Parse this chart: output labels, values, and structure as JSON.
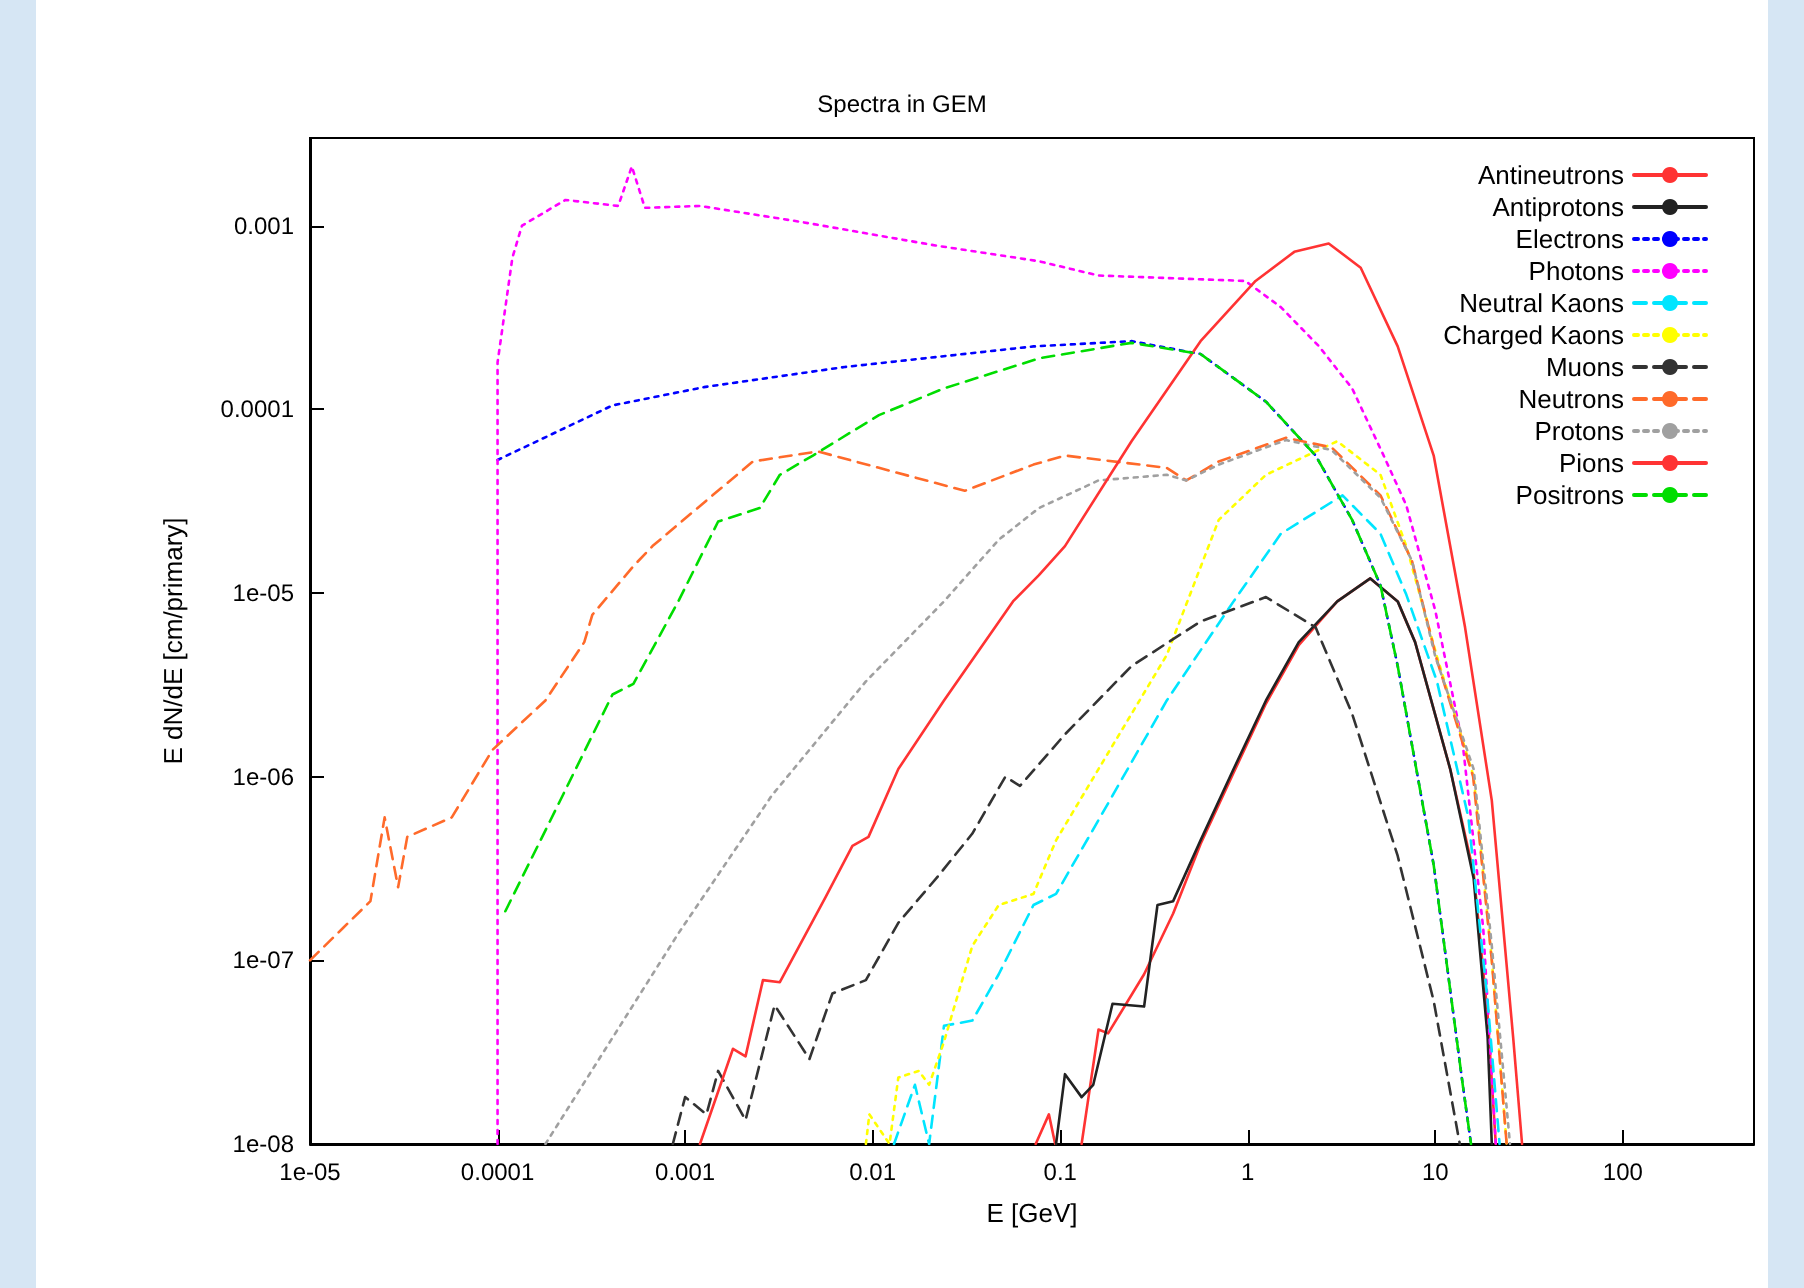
{
  "chart_data": {
    "type": "line",
    "title": "Spectra in GEM",
    "xlabel": "E [GeV]",
    "ylabel": "E dN/dE [cm/primary]",
    "log": "xy",
    "grid": false,
    "legend": "top right",
    "xlim": [
      1e-05,
      500
    ],
    "ylim": [
      1e-08,
      0.003
    ],
    "xticks": [
      {
        "value": 1e-05,
        "label": "1e-05"
      },
      0.0001,
      0.001,
      0.01,
      0.1,
      1,
      10,
      100
    ],
    "yticks": [
      {
        "value": 1e-08,
        "label": "1e-08"
      },
      {
        "value": 1e-07,
        "label": "1e-07"
      },
      {
        "value": 1e-06,
        "label": "1e-06"
      },
      {
        "value": 1e-05,
        "label": "1e-05"
      },
      0.0001,
      0.001
    ],
    "series": [
      {
        "name": "Antineutrons",
        "color": "#ff3333",
        "line_style": "solid",
        "x": [
          0.074,
          0.087,
          0.094,
          0.11,
          0.13,
          0.16,
          0.18,
          0.28,
          0.4,
          0.56,
          0.84,
          1.25,
          1.87,
          3.0,
          4.5,
          6.3,
          7.8,
          12,
          16,
          19,
          21
        ],
        "values": [
          1e-08,
          1.45e-08,
          1e-08,
          null,
          1e-08,
          4.2e-08,
          4e-08,
          8.4e-08,
          1.8e-07,
          4.3e-07,
          1.05e-06,
          2.5e-06,
          5.2e-06,
          9e-06,
          1.2e-05,
          9e-06,
          5.4e-06,
          1.1e-06,
          3e-07,
          5e-08,
          1e-08
        ]
      },
      {
        "name": "Antiprotons",
        "color": "#222222",
        "line_style": "solid",
        "x": [
          0.095,
          0.106,
          0.13,
          0.15,
          0.19,
          0.28,
          0.33,
          0.4,
          0.56,
          0.84,
          1.25,
          1.87,
          3.0,
          4.5,
          6.3,
          7.8,
          12,
          16,
          19,
          20
        ],
        "values": [
          1e-08,
          2.4e-08,
          1.8e-08,
          2.1e-08,
          5.8e-08,
          5.6e-08,
          2e-07,
          2.1e-07,
          4.5e-07,
          1.1e-06,
          2.6e-06,
          5.4e-06,
          9e-06,
          1.2e-05,
          9e-06,
          5.4e-06,
          1.1e-06,
          2.8e-07,
          3.8e-08,
          1e-08
        ]
      },
      {
        "name": "Electrons",
        "color": "#0000ff",
        "line_style": "dotted",
        "x": [
          0.0001,
          0.00041,
          0.00126,
          0.0071,
          0.072,
          0.24,
          0.56,
          1.25,
          2.3,
          3.6,
          5.1,
          6.3,
          9.8,
          14,
          15.5
        ],
        "values": [
          5.3e-05,
          0.000105,
          0.000132,
          0.00017,
          0.00022,
          0.000235,
          0.0002,
          0.00011,
          5.6e-05,
          2.5e-05,
          1.1e-05,
          4e-06,
          3.3e-07,
          2.1e-08,
          1e-08
        ]
      },
      {
        "name": "Photons",
        "color": "#ff00ff",
        "line_style": "dotted",
        "x": [
          0.0001,
          0.0001,
          0.00012,
          0.000135,
          0.00023,
          0.00044,
          0.00052,
          0.00061,
          0.0012,
          0.0041,
          0.0216,
          0.077,
          0.16,
          0.97,
          1.5,
          2.4,
          3.6,
          5.3,
          7,
          10,
          14,
          18,
          21
        ],
        "values": [
          1e-08,
          0.00018,
          0.00067,
          0.001,
          0.00138,
          0.00128,
          0.0021,
          0.00125,
          0.00128,
          0.00105,
          0.00078,
          0.00064,
          0.000535,
          0.0005,
          0.00036,
          0.00022,
          0.00013,
          5.6e-05,
          3e-05,
          8e-06,
          1.5e-06,
          1.5e-07,
          1e-08
        ]
      },
      {
        "name": "Neutral Kaons",
        "color": "#00e5ff",
        "line_style": "dashed",
        "x": [
          0.013,
          0.0168,
          0.02,
          0.024,
          0.034,
          0.047,
          0.072,
          0.095,
          0.16,
          0.37,
          0.84,
          1.5,
          3.2,
          5.1,
          7,
          10.2,
          15,
          19,
          22
        ],
        "values": [
          1e-08,
          2.1e-08,
          1e-08,
          4.4e-08,
          4.7e-08,
          8.4e-08,
          2e-07,
          2.3e-07,
          5.8e-07,
          2.6e-06,
          9e-06,
          2.1e-05,
          3.4e-05,
          2.1e-05,
          9.8e-06,
          3.3e-06,
          6e-07,
          6e-08,
          1e-08
        ]
      },
      {
        "name": "Charged Kaons",
        "color": "#ffff00",
        "line_style": "dotted",
        "x": [
          0.0092,
          0.0096,
          0.0123,
          0.0137,
          0.0176,
          0.02,
          0.024,
          0.034,
          0.047,
          0.072,
          0.095,
          0.16,
          0.37,
          0.7,
          1.25,
          3.0,
          5.1,
          7.0,
          10.2,
          16,
          20,
          24
        ],
        "values": [
          1e-08,
          1.45e-08,
          1e-08,
          2.3e-08,
          2.5e-08,
          2.1e-08,
          3.6e-08,
          1.2e-07,
          2e-07,
          2.3e-07,
          4.5e-07,
          1.1e-06,
          4.6e-06,
          2.5e-05,
          4.4e-05,
          6.7e-05,
          4.4e-05,
          1.8e-05,
          4.5e-06,
          1e-06,
          1e-07,
          1e-08
        ]
      },
      {
        "name": "Muons",
        "color": "#333333",
        "line_style": "dashed",
        "x": [
          0.00086,
          0.001,
          0.0013,
          0.0015,
          0.0021,
          0.003,
          0.0046,
          0.0061,
          0.0092,
          0.0137,
          0.0225,
          0.034,
          0.051,
          0.061,
          0.106,
          0.24,
          0.56,
          1.25,
          2.3,
          3.6,
          6.3,
          9.8,
          13.5
        ],
        "values": [
          1e-08,
          1.8e-08,
          1.45e-08,
          2.5e-08,
          1.35e-08,
          5.7e-08,
          2.9e-08,
          6.6e-08,
          7.8e-08,
          1.6e-07,
          2.9e-07,
          4.9e-07,
          1e-06,
          8.9e-07,
          1.7e-06,
          4e-06,
          7e-06,
          9.5e-06,
          6.5e-06,
          2.2e-06,
          3.7e-07,
          6e-08,
          1e-08
        ]
      },
      {
        "name": "Neutrons",
        "color": "#ff6a2a",
        "line_style": "dashed",
        "x": [
          1e-05,
          1.5e-05,
          2.1e-05,
          2.5e-05,
          2.95e-05,
          3.3e-05,
          5.7e-05,
          9.4e-05,
          0.00018,
          0.00029,
          0.00032,
          0.00053,
          0.00067,
          0.0014,
          0.0023,
          0.0051,
          0.0108,
          0.031,
          0.072,
          0.106,
          0.37,
          0.47,
          0.7,
          1.6,
          2.8,
          5.1,
          7.5,
          10.2,
          15.9,
          20,
          24
        ],
        "values": [
          1e-07,
          1.5e-07,
          2.1e-07,
          6e-07,
          2.5e-07,
          4.7e-07,
          6e-07,
          1.4e-06,
          2.6e-06,
          5.4e-06,
          7.6e-06,
          1.4e-05,
          1.8e-05,
          3.4e-05,
          5.2e-05,
          5.9e-05,
          4.8e-05,
          3.6e-05,
          5e-05,
          5.6e-05,
          4.8e-05,
          4.1e-05,
          5.2e-05,
          7e-05,
          6.2e-05,
          3.4e-05,
          1.5e-05,
          4.3e-06,
          1e-06,
          1e-07,
          1e-08
        ]
      },
      {
        "name": "Protons",
        "color": "#a0a0a0",
        "line_style": "dotted",
        "x": [
          0.00018,
          0.00092,
          0.0029,
          0.0092,
          0.024,
          0.047,
          0.077,
          0.16,
          0.37,
          0.47,
          0.7,
          1.6,
          2.8,
          5.1,
          7.5,
          10,
          16,
          20,
          25
        ],
        "values": [
          1e-08,
          1.4e-07,
          7.9e-07,
          3.3e-06,
          9e-06,
          1.95e-05,
          2.9e-05,
          4.1e-05,
          4.4e-05,
          4.1e-05,
          5e-05,
          6.8e-05,
          6e-05,
          3.3e-05,
          1.5e-05,
          4.5e-06,
          1.1e-06,
          1.2e-07,
          1e-08
        ]
      },
      {
        "name": "Pions",
        "color": "#ff3333",
        "line_style": "solid",
        "x": [
          0.0012,
          0.0018,
          0.0021,
          0.0026,
          0.0032,
          0.0056,
          0.0078,
          0.0095,
          0.0137,
          0.024,
          0.056,
          0.077,
          0.106,
          0.24,
          0.56,
          1.1,
          1.77,
          2.7,
          4.0,
          6.3,
          9.8,
          14.4,
          20,
          26,
          29
        ],
        "values": [
          1e-08,
          3.3e-08,
          3e-08,
          7.8e-08,
          7.6e-08,
          2.2e-07,
          4.2e-07,
          4.7e-07,
          1.1e-06,
          2.6e-06,
          9e-06,
          1.25e-05,
          1.8e-05,
          6.7e-05,
          0.000235,
          0.0005,
          0.00072,
          0.0008,
          0.00059,
          0.00022,
          5.6e-05,
          6.5e-06,
          7.4e-07,
          3.8e-08,
          1e-08
        ]
      },
      {
        "name": "Positrons",
        "color": "#00dd00",
        "line_style": "dashed",
        "x": [
          0.00011,
          0.00019,
          0.00041,
          0.00053,
          0.00092,
          0.0015,
          0.0025,
          0.0032,
          0.0048,
          0.0108,
          0.024,
          0.078,
          0.24,
          0.56,
          1.25,
          2.3,
          3.6,
          5.1,
          6.3,
          9.8,
          14,
          15.5
        ],
        "values": [
          1.85e-07,
          5.7e-07,
          2.8e-06,
          3.2e-06,
          9e-06,
          2.45e-05,
          2.9e-05,
          4.4e-05,
          5.6e-05,
          9.3e-05,
          0.00013,
          0.00019,
          0.00023,
          0.0002,
          0.00011,
          5.6e-05,
          2.5e-05,
          1.1e-05,
          4e-06,
          3.3e-07,
          2.1e-08,
          1e-08
        ]
      }
    ]
  }
}
